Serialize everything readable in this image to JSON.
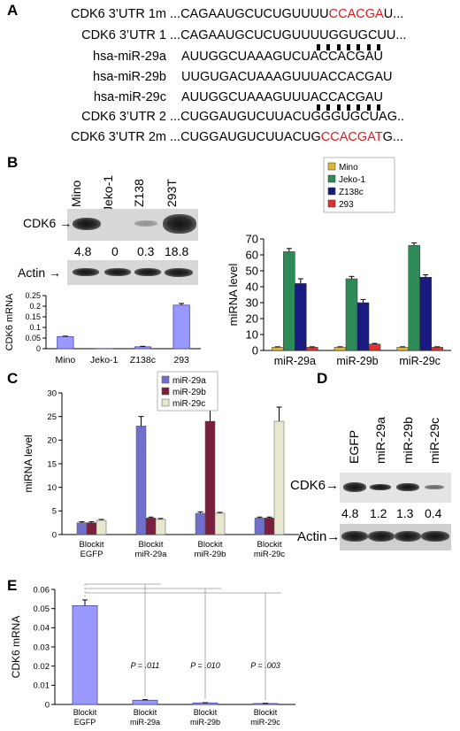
{
  "panel_letters": {
    "a": "A",
    "b": "B",
    "c": "C",
    "d": "D",
    "e": "E"
  },
  "panel_a": {
    "rows": [
      {
        "label": "CDK6 3’UTR 1m",
        "seq_pre": "...CAGAAUGCUCUGUUUU",
        "seq_mut": "CCACGA",
        "seq_post": "U..."
      },
      {
        "label": "CDK6 3’UTR 1",
        "seq_pre": "...CAGAAUGCUCUGUUUUGGUGCUU...",
        "seq_mut": "",
        "seq_post": ""
      },
      {
        "label": "hsa-miR-29a",
        "seq_pre": "AUUGGCUAAAGUCUACCACGAU",
        "seq_mut": "",
        "seq_post": ""
      },
      {
        "label": "hsa-miR-29b",
        "seq_pre": "UUGUGACUAAAGUUUACCACGAU",
        "seq_mut": "",
        "seq_post": ""
      },
      {
        "label": "hsa-miR-29c",
        "seq_pre": "AUUGGCUAAAGUUUACCACGAU",
        "seq_mut": "",
        "seq_post": ""
      },
      {
        "label": "CDK6 3’UTR 2",
        "seq_pre": "...CUGGAUGUCUUACUGGGUGCUAG..",
        "seq_mut": "",
        "seq_post": ""
      },
      {
        "label": "CDK6 3’UTR 2m",
        "seq_pre": "...CUGGAUGUCUUACUG",
        "seq_mut": "CCACGAT",
        "seq_post": "G..."
      }
    ]
  },
  "panel_b_blot": {
    "lanes": [
      "Mino",
      "Jeko-1",
      "Z138",
      "293T"
    ],
    "protein_label": "CDK6",
    "loading_label": "Actin",
    "quant": [
      "4.8",
      "0",
      "0.3",
      "18.8"
    ]
  },
  "chart_data": [
    {
      "type": "bar",
      "panel": "B",
      "categories": [
        "Mino",
        "Jeko-1",
        "Z138c",
        "293"
      ],
      "values": [
        0.057,
        0.001,
        0.009,
        0.205
      ],
      "errors": [
        0.002,
        0.0,
        0.002,
        0.008
      ],
      "ylabel": "CDK6 mRNA",
      "xlabel": "",
      "ylim": [
        0,
        0.25
      ],
      "yticks": [
        "0",
        "0.05",
        "0.1",
        "0.15",
        "0.2",
        "0.25"
      ],
      "color": "#9999ff"
    },
    {
      "type": "bar",
      "panel": "B",
      "categories": [
        "miR-29a",
        "miR-29b",
        "miR-29c"
      ],
      "series": [
        {
          "name": "Mino",
          "values": [
            2,
            2,
            2
          ],
          "errors": [
            0.3,
            0.3,
            0.3
          ],
          "color": "#e0b630"
        },
        {
          "name": "Jeko-1",
          "values": [
            62,
            45,
            66
          ],
          "errors": [
            2,
            1.5,
            1.5
          ],
          "color": "#2e8b57"
        },
        {
          "name": "Z138c",
          "values": [
            42,
            30,
            46
          ],
          "errors": [
            3,
            2,
            1.5
          ],
          "color": "#1a1a80"
        },
        {
          "name": "293",
          "values": [
            2,
            4,
            2
          ],
          "errors": [
            0.3,
            0.4,
            0.3
          ],
          "color": "#e03030"
        }
      ],
      "ylabel": "miRNA  level",
      "xlabel": "",
      "ylim": [
        0,
        70
      ],
      "yticks": [
        "0",
        "10",
        "20",
        "30",
        "40",
        "50",
        "60",
        "70"
      ],
      "legend": "top"
    },
    {
      "type": "bar",
      "panel": "C",
      "categories": [
        "Blockit EGFP",
        "Blockit miR-29a",
        "Blockit miR-29b",
        "Blockit miR-29c"
      ],
      "category_lines": [
        [
          "Blockit",
          "EGFP"
        ],
        [
          "Blockit",
          "miR-29a"
        ],
        [
          "Blockit",
          "miR-29b"
        ],
        [
          "Blockit",
          "miR-29c"
        ]
      ],
      "series": [
        {
          "name": "miR-29a",
          "values": [
            2.5,
            23,
            4.5,
            3.5
          ],
          "errors": [
            0.2,
            2,
            0.3,
            0.2
          ],
          "color": "#7070cc"
        },
        {
          "name": "miR-29b",
          "values": [
            2.5,
            3.5,
            24,
            3.5
          ],
          "errors": [
            0.2,
            0.2,
            3,
            0.2
          ],
          "color": "#7a1f3d"
        },
        {
          "name": "miR-29c",
          "values": [
            3,
            3.2,
            4.5,
            24
          ],
          "errors": [
            0.2,
            0.2,
            0.2,
            3
          ],
          "color": "#e8e8d0"
        }
      ],
      "ylabel": "miRNA  level",
      "xlabel": "",
      "ylim": [
        0,
        30
      ],
      "yticks": [
        "0",
        "5",
        "10",
        "15",
        "20",
        "25",
        "30"
      ],
      "legend": "top"
    },
    {
      "type": "bar",
      "panel": "E",
      "categories": [
        "Blockit EGFP",
        "Blockit miR-29a",
        "Blockit miR-29b",
        "Blockit miR-29c"
      ],
      "category_lines": [
        [
          "Blockit",
          "EGFP"
        ],
        [
          "Blockit",
          "miR-29a"
        ],
        [
          "Blockit",
          "miR-29b"
        ],
        [
          "Blockit",
          "miR-29c"
        ]
      ],
      "values": [
        0.0515,
        0.0022,
        0.0008,
        0.0005
      ],
      "errors": [
        0.003,
        0.0003,
        0.0001,
        0.0001
      ],
      "pvalues": [
        "",
        "P = .011",
        "P = .010",
        "P = .003"
      ],
      "ylabel": "CDK6 mRNA",
      "xlabel": "",
      "ylim": [
        0,
        0.06
      ],
      "yticks": [
        "0",
        "0.01",
        "0.02",
        "0.03",
        "0.04",
        "0.05",
        "0.06"
      ],
      "color": "#9999ff"
    }
  ],
  "panel_d_blot": {
    "lanes": [
      "EGFP",
      "miR-29a",
      "miR-29b",
      "miR-29c"
    ],
    "protein_label": "CDK6",
    "loading_label": "Actin",
    "quant": [
      "4.8",
      "1.2",
      "1.3",
      "0.4"
    ]
  }
}
